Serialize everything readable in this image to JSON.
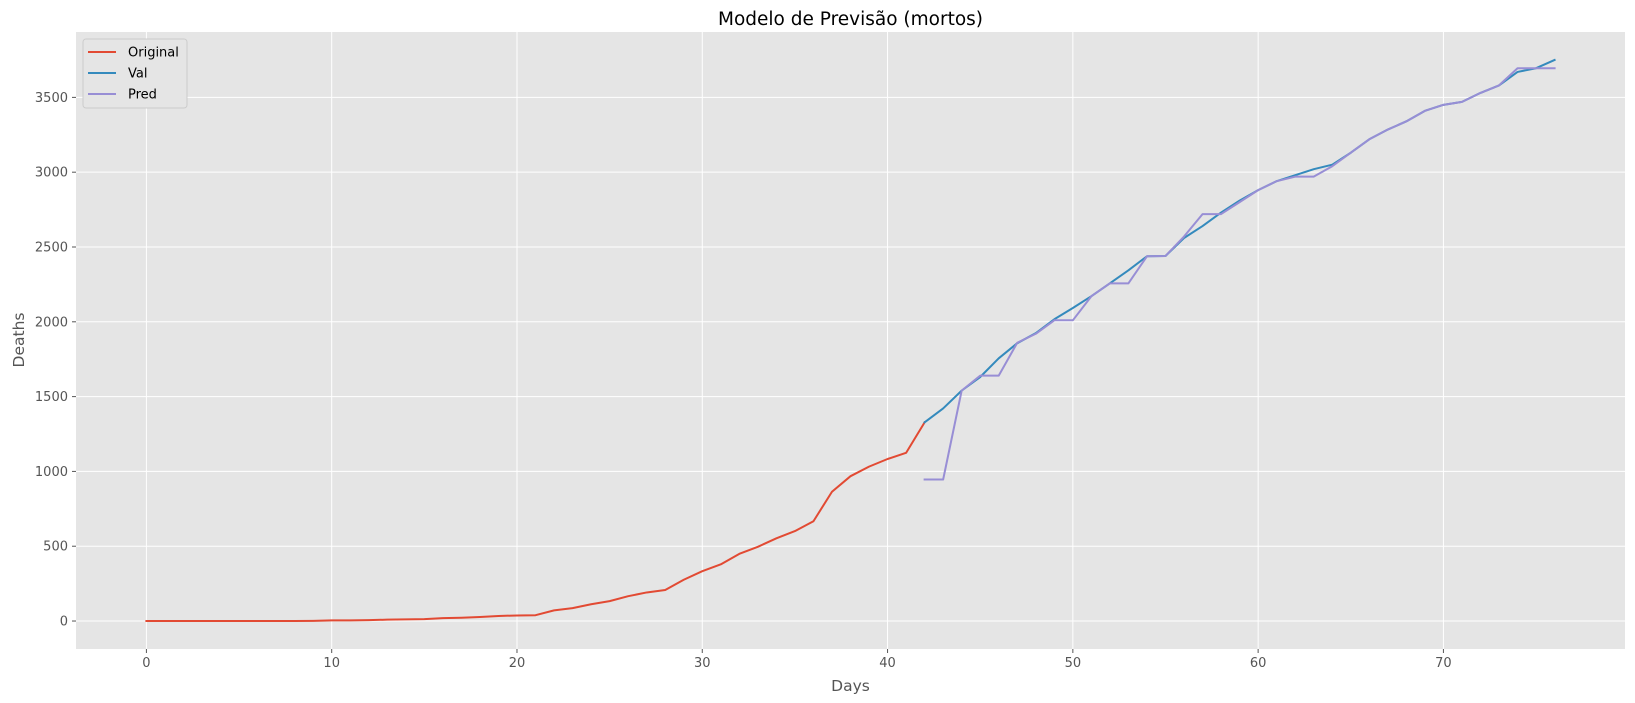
{
  "chart_data": {
    "type": "line",
    "title": "Modelo de Previsão (mortos)",
    "xlabel": "Days",
    "ylabel": "Deaths",
    "xlim": [
      -3.8,
      79.8
    ],
    "ylim": [
      -187,
      3937
    ],
    "xticks": [
      0,
      10,
      20,
      30,
      40,
      50,
      60,
      70
    ],
    "yticks": [
      0,
      500,
      1000,
      1500,
      2000,
      2500,
      3000,
      3500
    ],
    "grid": true,
    "legend_position": "top-left",
    "style": {
      "plot_background": "#e5e5e5",
      "grid_color": "#ffffff"
    },
    "series": [
      {
        "name": "Original",
        "color": "#e24a33",
        "x": [
          0,
          1,
          2,
          3,
          4,
          5,
          6,
          7,
          8,
          9,
          10,
          11,
          12,
          13,
          14,
          15,
          16,
          17,
          18,
          19,
          20,
          21,
          22,
          23,
          24,
          25,
          26,
          27,
          28,
          29,
          30,
          31,
          32,
          33,
          34,
          35,
          36,
          37,
          38,
          39,
          40,
          41,
          42
        ],
        "y": [
          0,
          0,
          0,
          0,
          0,
          0,
          0,
          0,
          0,
          1,
          4,
          4,
          6,
          9,
          11,
          13,
          19,
          22,
          27,
          34,
          37,
          39,
          71,
          86,
          112,
          133,
          166,
          191,
          207,
          276,
          333,
          379,
          449,
          496,
          553,
          601,
          667,
          864,
          968,
          1032,
          1083,
          1124,
          1328
        ]
      },
      {
        "name": "Val",
        "color": "#348abd",
        "x": [
          42,
          43,
          44,
          45,
          46,
          47,
          48,
          49,
          50,
          51,
          52,
          53,
          54,
          55,
          56,
          57,
          58,
          59,
          60,
          61,
          62,
          63,
          64,
          65,
          66,
          67,
          68,
          69,
          70,
          71,
          72,
          73,
          74,
          75,
          76
        ],
        "y": [
          1328,
          1421,
          1540,
          1631,
          1756,
          1857,
          1924,
          2017,
          2092,
          2171,
          2257,
          2344,
          2438,
          2440,
          2560,
          2640,
          2730,
          2810,
          2880,
          2940,
          2980,
          3020,
          3050,
          3130,
          3220,
          3285,
          3340,
          3410,
          3450,
          3470,
          3530,
          3580,
          3670,
          3695,
          3750
        ]
      },
      {
        "name": "Pred",
        "color": "#988ed5",
        "x": [
          42,
          43,
          44,
          45,
          46,
          47,
          48,
          49,
          50,
          51,
          52,
          53,
          54,
          55,
          56,
          57,
          58,
          59,
          60,
          61,
          62,
          63,
          64,
          65,
          66,
          67,
          68,
          69,
          70,
          71,
          72,
          73,
          74,
          75,
          76
        ],
        "y": [
          946,
          946,
          1540,
          1640,
          1640,
          1860,
          1920,
          2010,
          2010,
          2171,
          2257,
          2257,
          2438,
          2440,
          2570,
          2720,
          2720,
          2800,
          2880,
          2940,
          2970,
          2970,
          3040,
          3130,
          3220,
          3285,
          3340,
          3410,
          3450,
          3470,
          3530,
          3580,
          3695,
          3695,
          3695
        ]
      }
    ]
  }
}
